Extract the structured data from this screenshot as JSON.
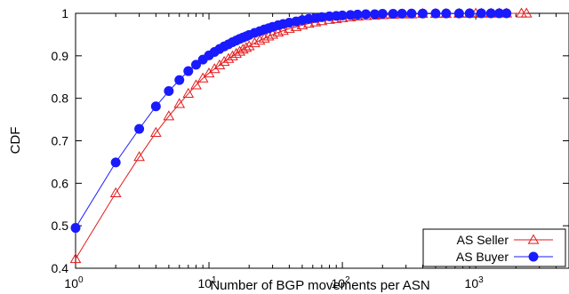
{
  "chart_data": {
    "type": "scatter",
    "title": "",
    "xlabel": "Number of BGP movements per ASN",
    "ylabel": "CDF",
    "xscale": "log",
    "xlim": [
      1,
      5000
    ],
    "ylim": [
      0.4,
      1.0
    ],
    "grid": false,
    "legend_position": "bottom-right",
    "x_ticks": [
      {
        "base": "10",
        "exp": "0",
        "value": 1
      },
      {
        "base": "10",
        "exp": "1",
        "value": 10
      },
      {
        "base": "10",
        "exp": "2",
        "value": 100
      },
      {
        "base": "10",
        "exp": "3",
        "value": 1000
      }
    ],
    "y_ticks": [
      {
        "label": "0.4",
        "value": 0.4
      },
      {
        "label": "0.5",
        "value": 0.5
      },
      {
        "label": "0.6",
        "value": 0.6
      },
      {
        "label": "0.7",
        "value": 0.7
      },
      {
        "label": "0.8",
        "value": 0.8
      },
      {
        "label": "0.9",
        "value": 0.9
      },
      {
        "label": "1",
        "value": 1.0
      }
    ],
    "series": [
      {
        "name": "AS Seller",
        "color": "#e31a1c",
        "marker": "open-triangle",
        "x": [
          1,
          2,
          3,
          4,
          5,
          6,
          7,
          8,
          9,
          10,
          11,
          12,
          13,
          14,
          15,
          16,
          17,
          18,
          19,
          20,
          22,
          24,
          26,
          28,
          30,
          33,
          36,
          40,
          45,
          50,
          56,
          63,
          70,
          80,
          90,
          100,
          115,
          130,
          150,
          175,
          200,
          240,
          280,
          330,
          400,
          500,
          600,
          750,
          900,
          1000,
          1100,
          1300,
          1500,
          1700,
          2200,
          2400
        ],
        "y": [
          0.422,
          0.577,
          0.662,
          0.719,
          0.758,
          0.787,
          0.811,
          0.831,
          0.847,
          0.859,
          0.869,
          0.878,
          0.886,
          0.893,
          0.899,
          0.905,
          0.91,
          0.915,
          0.919,
          0.923,
          0.93,
          0.936,
          0.941,
          0.946,
          0.95,
          0.955,
          0.959,
          0.964,
          0.968,
          0.972,
          0.976,
          0.979,
          0.982,
          0.985,
          0.987,
          0.989,
          0.991,
          0.993,
          0.994,
          0.995,
          0.996,
          0.997,
          0.998,
          0.998,
          0.999,
          0.999,
          0.999,
          0.9995,
          0.9995,
          0.9997,
          0.9998,
          0.9998,
          0.9999,
          0.9999,
          1.0,
          1.0
        ]
      },
      {
        "name": "AS Buyer",
        "color": "#1a1aff",
        "marker": "filled-circle",
        "x": [
          1,
          2,
          3,
          4,
          5,
          6,
          7,
          8,
          9,
          10,
          11,
          12,
          13,
          14,
          15,
          16,
          17,
          18,
          19,
          20,
          22,
          24,
          26,
          28,
          30,
          33,
          36,
          40,
          45,
          50,
          56,
          63,
          70,
          80,
          90,
          100,
          115,
          130,
          150,
          175,
          200,
          240,
          280,
          330,
          400,
          500,
          600,
          750,
          900,
          1100,
          1300,
          1500,
          1700
        ],
        "y": [
          0.495,
          0.649,
          0.728,
          0.781,
          0.817,
          0.843,
          0.864,
          0.879,
          0.891,
          0.901,
          0.909,
          0.916,
          0.922,
          0.927,
          0.932,
          0.936,
          0.94,
          0.943,
          0.946,
          0.949,
          0.954,
          0.958,
          0.962,
          0.965,
          0.968,
          0.972,
          0.975,
          0.978,
          0.981,
          0.984,
          0.987,
          0.989,
          0.991,
          0.993,
          0.994,
          0.995,
          0.996,
          0.997,
          0.998,
          0.998,
          0.999,
          0.999,
          0.9993,
          0.9995,
          0.9996,
          0.9997,
          0.9998,
          0.9998,
          0.9999,
          0.9999,
          1.0,
          1.0,
          1.0
        ]
      }
    ]
  }
}
